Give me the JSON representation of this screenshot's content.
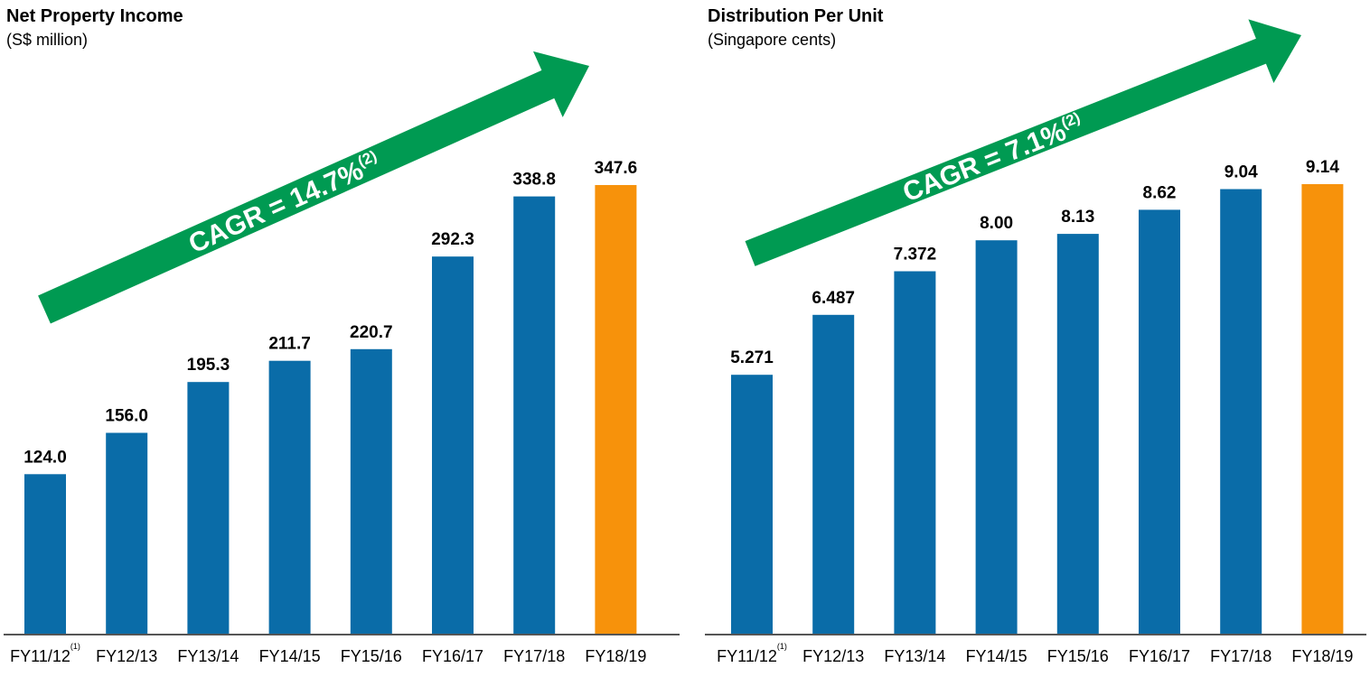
{
  "colors": {
    "bar_default": "#0a6ca8",
    "bar_highlight": "#f7920b",
    "arrow": "#009a52",
    "axis": "#555555"
  },
  "chart_data": [
    {
      "type": "bar",
      "title": "Net Property Income",
      "subtitle": "(S$ million)",
      "categories": [
        "FY11/12",
        "FY12/13",
        "FY13/14",
        "FY14/15",
        "FY15/16",
        "FY16/17",
        "FY17/18",
        "FY18/19"
      ],
      "category_footnotes": [
        "(1)",
        "",
        "",
        "",
        "",
        "",
        "",
        ""
      ],
      "values": [
        124.0,
        156.0,
        195.3,
        211.7,
        220.7,
        292.3,
        338.8,
        347.6
      ],
      "value_labels": [
        "124.0",
        "156.0",
        "195.3",
        "211.7",
        "220.7",
        "292.3",
        "338.8",
        "347.6"
      ],
      "highlight_index": 7,
      "ylim": [
        0,
        347.6
      ],
      "xlabel": "",
      "ylabel": "",
      "grid": false,
      "annotation": {
        "text": "CAGR = 14.7%",
        "footnote": "(2)"
      }
    },
    {
      "type": "bar",
      "title": "Distribution Per Unit",
      "subtitle": "(Singapore cents)",
      "categories": [
        "FY11/12",
        "FY12/13",
        "FY13/14",
        "FY14/15",
        "FY15/16",
        "FY16/17",
        "FY17/18",
        "FY18/19"
      ],
      "category_footnotes": [
        "(1)",
        "",
        "",
        "",
        "",
        "",
        "",
        ""
      ],
      "values": [
        5.271,
        6.487,
        7.372,
        8.0,
        8.13,
        8.62,
        9.04,
        9.14
      ],
      "value_labels": [
        "5.271",
        "6.487",
        "7.372",
        "8.00",
        "8.13",
        "8.62",
        "9.04",
        "9.14"
      ],
      "highlight_index": 7,
      "ylim": [
        0,
        9.14
      ],
      "xlabel": "",
      "ylabel": "",
      "grid": false,
      "annotation": {
        "text": "CAGR = 7.1%",
        "footnote": "(2)"
      }
    }
  ]
}
